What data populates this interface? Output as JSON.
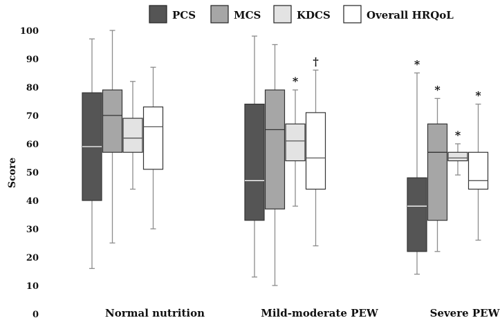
{
  "chart_data": {
    "type": "boxplot",
    "title": "",
    "xlabel": "",
    "ylabel": "Score",
    "ylim": [
      0,
      100
    ],
    "yticks": [
      0,
      10,
      20,
      30,
      40,
      50,
      60,
      70,
      80,
      90,
      100
    ],
    "grid": false,
    "legend_position": "top",
    "categories": [
      "Normal nutrition",
      "Mild-moderate PEW",
      "Severe PEW"
    ],
    "series": [
      {
        "name": "PCS",
        "color": "#555555",
        "median_color": "#ffffff",
        "boxes": [
          {
            "min": 16,
            "q1": 40,
            "median": 59,
            "q3": 78,
            "max": 97,
            "marker": ""
          },
          {
            "min": 13,
            "q1": 33,
            "median": 47,
            "q3": 74,
            "max": 98,
            "marker": ""
          },
          {
            "min": 14,
            "q1": 22,
            "median": 38,
            "q3": 48,
            "max": 85,
            "marker": "*"
          }
        ]
      },
      {
        "name": "MCS",
        "color": "#a6a6a6",
        "median_color": "#333333",
        "boxes": [
          {
            "min": 25,
            "q1": 57,
            "median": 70,
            "q3": 79,
            "max": 100,
            "marker": ""
          },
          {
            "min": 10,
            "q1": 37,
            "median": 65,
            "q3": 79,
            "max": 95,
            "marker": ""
          },
          {
            "min": 22,
            "q1": 33,
            "median": 57,
            "q3": 67,
            "max": 76,
            "marker": "*"
          }
        ]
      },
      {
        "name": "KDCS",
        "color": "#e3e3e3",
        "median_color": "#555555",
        "boxes": [
          {
            "min": 44,
            "q1": 57,
            "median": 62,
            "q3": 69,
            "max": 82,
            "marker": ""
          },
          {
            "min": 38,
            "q1": 54,
            "median": 61,
            "q3": 67,
            "max": 79,
            "marker": "*"
          },
          {
            "min": 49,
            "q1": 54,
            "median": 55,
            "q3": 57,
            "max": 60,
            "marker": "*"
          }
        ]
      },
      {
        "name": "Overall HRQoL",
        "color": "#ffffff",
        "median_color": "#555555",
        "boxes": [
          {
            "min": 30,
            "q1": 51,
            "median": 66,
            "q3": 73,
            "max": 87,
            "marker": ""
          },
          {
            "min": 24,
            "q1": 44,
            "median": 55,
            "q3": 71,
            "max": 86,
            "marker": "†"
          },
          {
            "min": 26,
            "q1": 44,
            "median": 47,
            "q3": 57,
            "max": 74,
            "marker": "*"
          }
        ]
      }
    ]
  }
}
